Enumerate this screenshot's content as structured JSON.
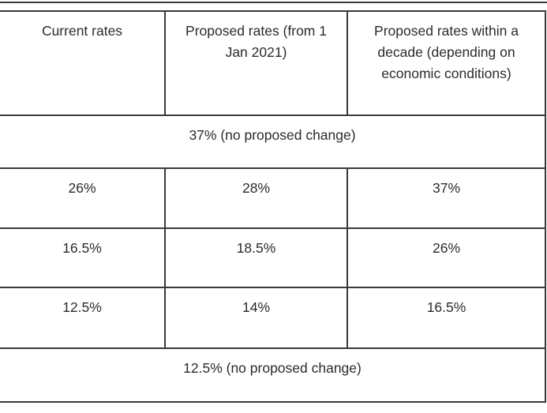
{
  "table": {
    "headers": [
      "Current rates",
      "Proposed rates (from 1 Jan 2021)",
      "Proposed rates within a decade (depending on economic conditions)"
    ],
    "merged_top": "37% (no proposed change)",
    "rows": [
      [
        "26%",
        "28%",
        "37%"
      ],
      [
        "16.5%",
        "18.5%",
        "26%"
      ],
      [
        "12.5%",
        "14%",
        "16.5%"
      ]
    ],
    "merged_bottom": "12.5% (no proposed change)"
  },
  "colors": {
    "border": "#3a3a3a",
    "text": "#2b2b2b",
    "background": "#ffffff"
  }
}
